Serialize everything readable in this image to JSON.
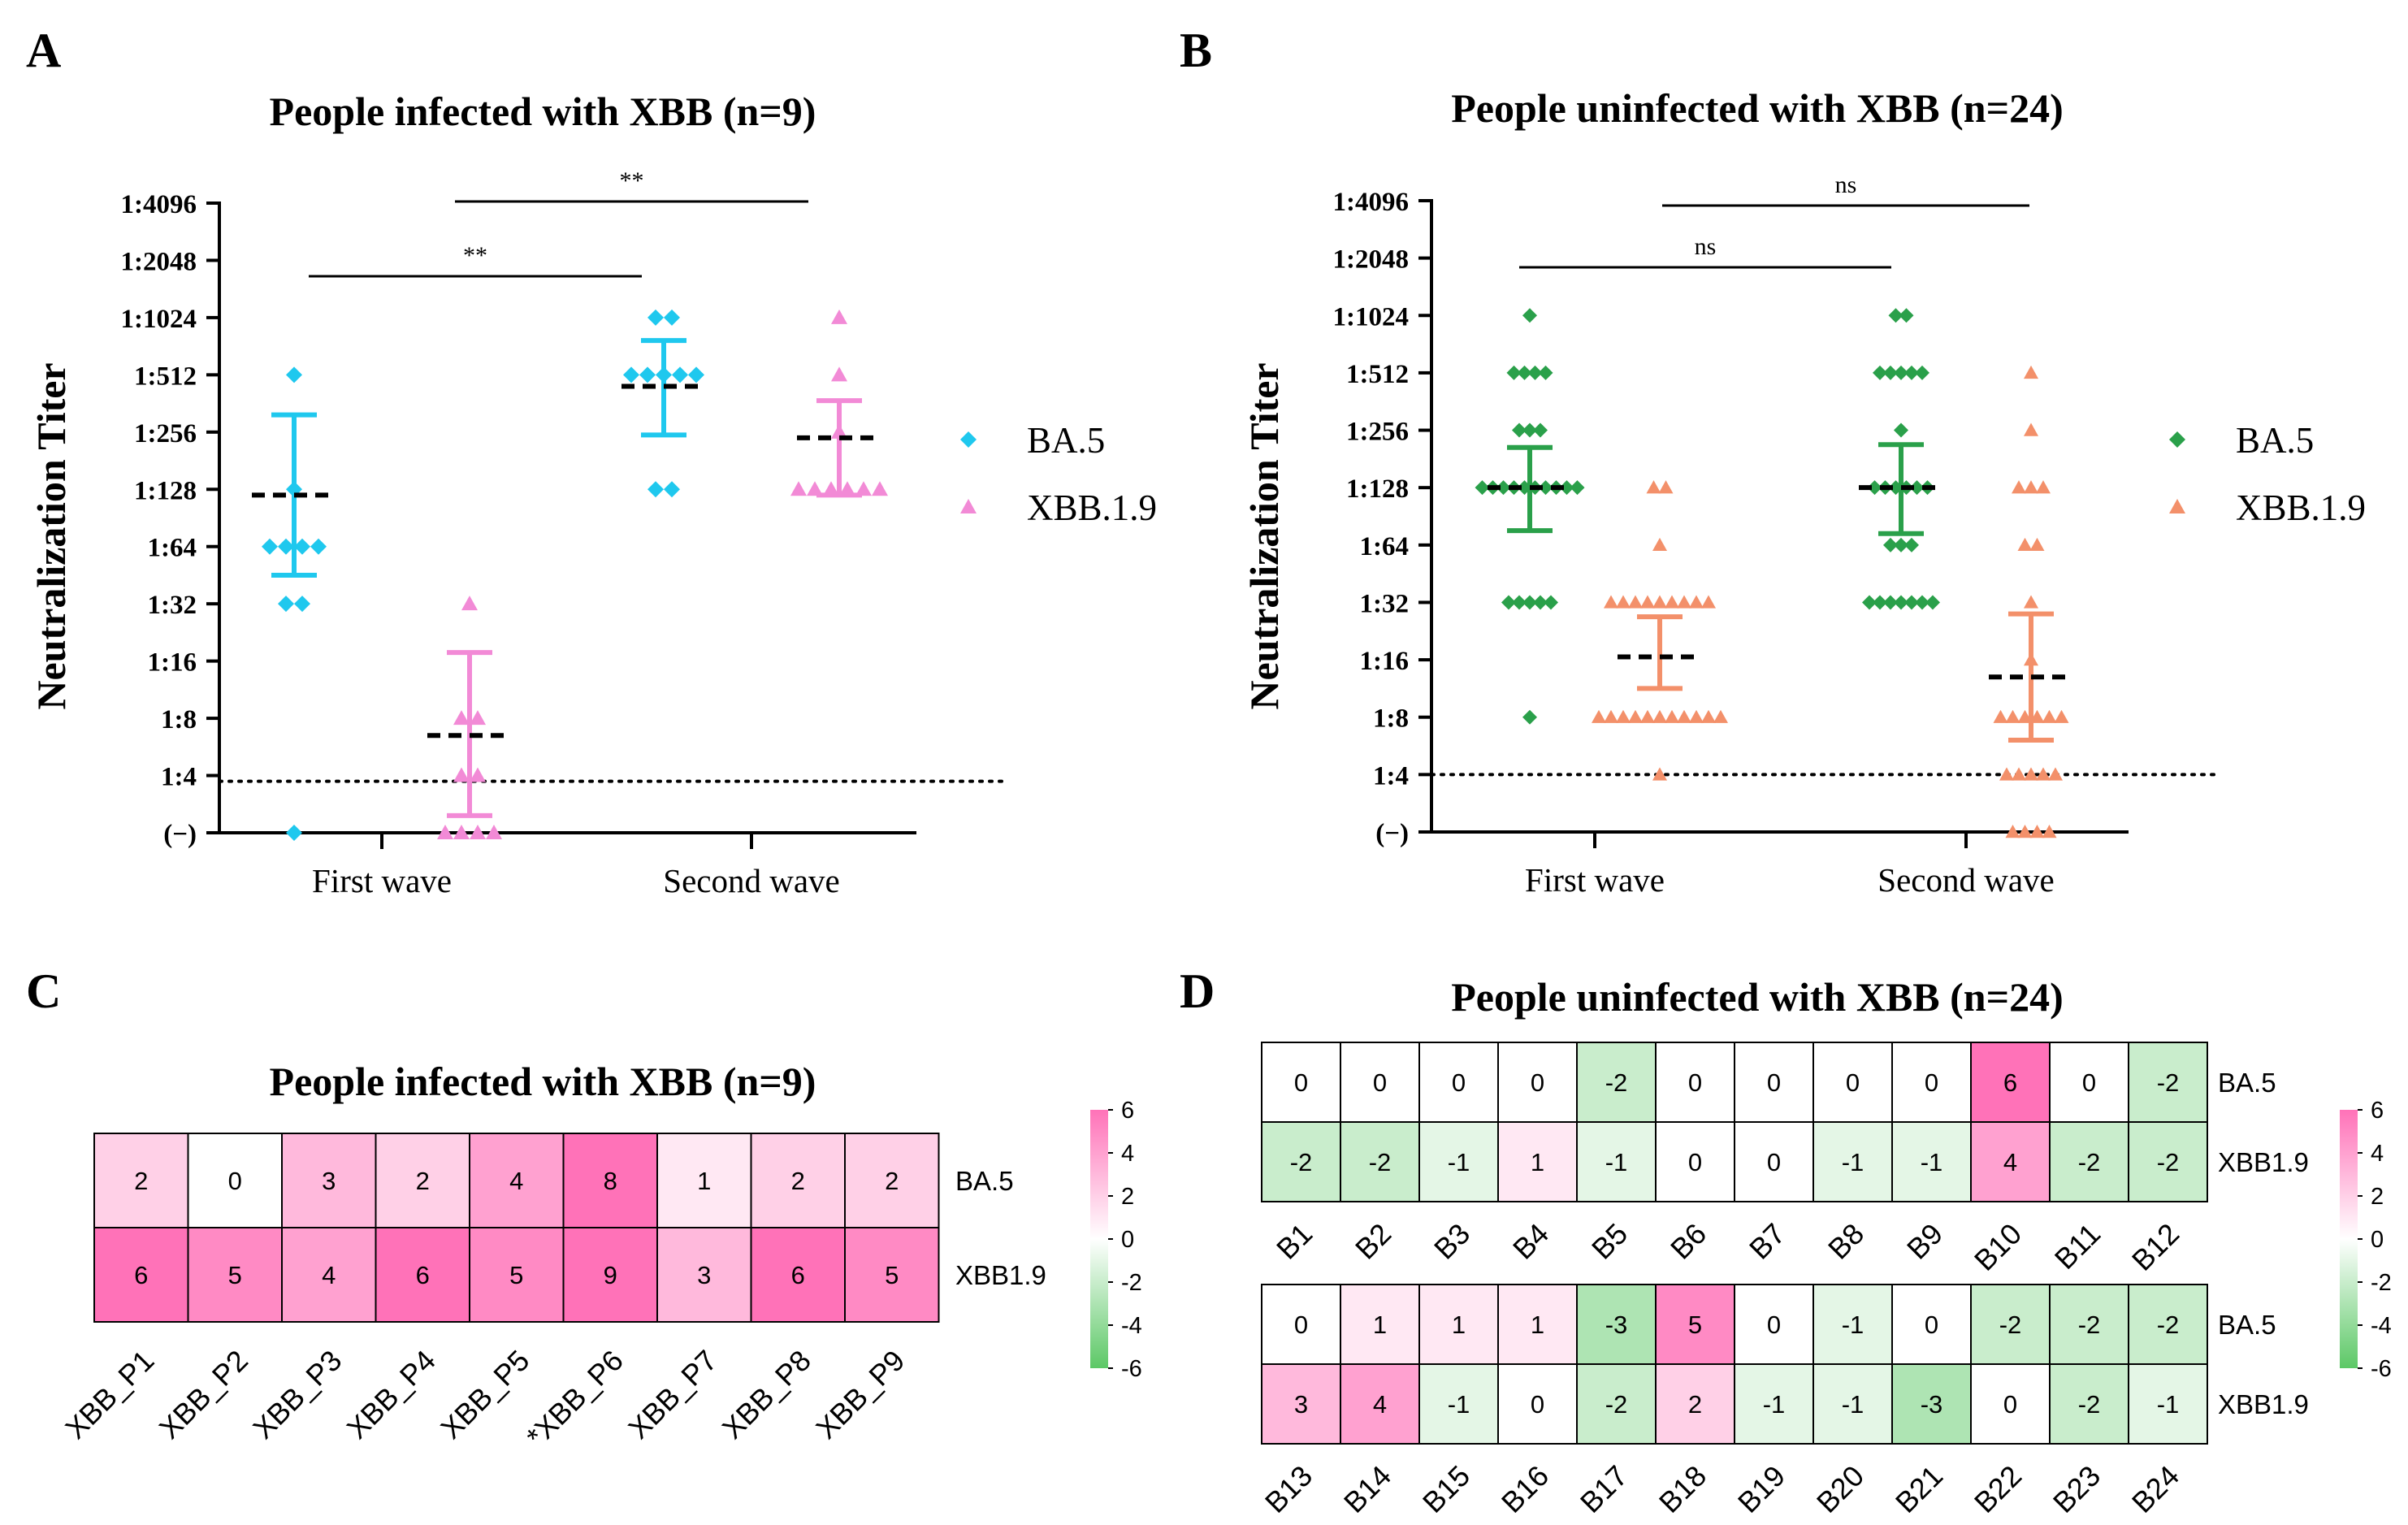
{
  "panels": {
    "A": {
      "letter": "A",
      "title": "People infected with XBB (n=9)",
      "ylabel": "Neutralization Titer",
      "yticks": [
        "(−)",
        "1:4",
        "1:8",
        "1:16",
        "1:32",
        "1:64",
        "1:128",
        "1:256",
        "1:512",
        "1:1024",
        "1:2048",
        "1:4096"
      ],
      "groups": [
        "First wave",
        "Second wave"
      ],
      "legend": [
        "BA.5",
        "XBB.1.9"
      ],
      "brackets": [
        "**",
        "**"
      ]
    },
    "B": {
      "letter": "B",
      "title": "People uninfected with XBB (n=24)",
      "ylabel": "Neutralization Titer",
      "yticks": [
        "(−)",
        "1:4",
        "1:8",
        "1:16",
        "1:32",
        "1:64",
        "1:128",
        "1:256",
        "1:512",
        "1:1024",
        "1:2048",
        "1:4096"
      ],
      "groups": [
        "First wave",
        "Second wave"
      ],
      "legend": [
        "BA.5",
        "XBB.1.9"
      ],
      "brackets": [
        "ns",
        "ns"
      ]
    },
    "C": {
      "letter": "C",
      "title": "People infected with XBB (n=9)",
      "rows": [
        "BA.5",
        "XBB1.9"
      ],
      "cols": [
        "XBB_P1",
        "XBB_P2",
        "XBB_P3",
        "XBB_P4",
        "XBB_P5",
        "*XBB_P6",
        "XBB_P7",
        "XBB_P8",
        "XBB_P9"
      ],
      "values": [
        [
          2,
          0,
          3,
          2,
          4,
          8,
          1,
          2,
          2
        ],
        [
          6,
          5,
          4,
          6,
          5,
          9,
          3,
          6,
          5
        ]
      ]
    },
    "D": {
      "letter": "D",
      "title": "People uninfected with XBB (n=24)",
      "rows": [
        "BA.5",
        "XBB1.9"
      ],
      "cols_top": [
        "B1",
        "B2",
        "B3",
        "B4",
        "B5",
        "B6",
        "B7",
        "B8",
        "B9",
        "B10",
        "B11",
        "B12"
      ],
      "values_top": [
        [
          0,
          0,
          0,
          0,
          -2,
          0,
          0,
          0,
          0,
          6,
          0,
          -2
        ],
        [
          -2,
          -2,
          -1,
          1,
          -1,
          0,
          0,
          -1,
          -1,
          4,
          -2,
          -2
        ]
      ],
      "cols_bottom": [
        "B13",
        "B14",
        "B15",
        "B16",
        "B17",
        "B18",
        "B19",
        "B20",
        "B21",
        "B22",
        "B23",
        "B24"
      ],
      "values_bottom": [
        [
          0,
          1,
          1,
          1,
          -3,
          5,
          0,
          -1,
          0,
          -2,
          -2,
          -2
        ],
        [
          3,
          4,
          -1,
          0,
          -2,
          2,
          -1,
          -1,
          -3,
          0,
          -2,
          -1
        ]
      ]
    }
  },
  "colorbar_ticks": [
    "6",
    "4",
    "2",
    "0",
    "-2",
    "-4",
    "-6"
  ],
  "colors": {
    "A_BA5": "#1fc8ee",
    "A_XBB": "#f28ad6",
    "B_BA5": "#2aa04a",
    "B_XBB": "#f3906a",
    "heat_pos": "#ff72b8",
    "heat_neg": "#5cc866"
  },
  "chart_data": [
    {
      "type": "scatter",
      "title": "People infected with XBB (n=9)",
      "xlabel": "",
      "ylabel": "Neutralization Titer",
      "categories": [
        "First wave",
        "Second wave"
      ],
      "y_scale": "log2 titer; 0 = (−), 1 = 1:4 ... 11 = 1:4096",
      "ylim": [
        0,
        11
      ],
      "series": [
        {
          "name": "BA.5",
          "group": "First wave",
          "values": [
            6,
            5,
            5,
            5,
            5,
            4,
            4,
            8,
            0
          ],
          "mean": 5.9,
          "err": [
            4.5,
            7.3
          ]
        },
        {
          "name": "XBB.1.9",
          "group": "First wave",
          "values": [
            4,
            2,
            2,
            1,
            1,
            0,
            0,
            0,
            0
          ],
          "mean": 1.7,
          "err": [
            0.3,
            3.15
          ]
        },
        {
          "name": "BA.5",
          "group": "Second wave",
          "values": [
            9,
            9,
            8,
            8,
            8,
            8,
            8,
            6,
            6
          ],
          "mean": 7.8,
          "err": [
            6.95,
            8.6
          ]
        },
        {
          "name": "XBB.1.9",
          "group": "Second wave",
          "values": [
            9,
            8,
            7,
            6,
            6,
            6,
            6,
            6,
            6
          ],
          "mean": 6.9,
          "err": [
            5.9,
            7.55
          ]
        }
      ],
      "significance": [
        {
          "pair": "First wave BA.5 vs Second wave BA.5",
          "label": "**"
        },
        {
          "pair": "First wave XBB.1.9 vs Second wave XBB.1.9",
          "label": "**"
        }
      ],
      "reference_line": {
        "y": 0.9,
        "style": "dotted"
      }
    },
    {
      "type": "scatter",
      "title": "People uninfected with XBB (n=24)",
      "xlabel": "",
      "ylabel": "Neutralization Titer",
      "categories": [
        "First wave",
        "Second wave"
      ],
      "y_scale": "log2 titer; 0 = (−), 1 = 1:4 ... 11 = 1:4096",
      "ylim": [
        0,
        11
      ],
      "series": [
        {
          "name": "BA.5",
          "group": "First wave",
          "values": [
            9,
            8,
            8,
            8,
            8,
            7,
            7,
            7,
            6,
            6,
            6,
            6,
            6,
            6,
            6,
            6,
            6,
            6,
            4,
            4,
            4,
            4,
            4,
            2
          ],
          "mean": 6,
          "err": [
            5.25,
            6.7
          ]
        },
        {
          "name": "XBB.1.9",
          "group": "First wave",
          "values": [
            6,
            6,
            5,
            4,
            4,
            4,
            4,
            4,
            4,
            4,
            4,
            4,
            2,
            2,
            2,
            2,
            2,
            2,
            2,
            2,
            2,
            2,
            2,
            1
          ],
          "mean": 3.05,
          "err": [
            2.5,
            3.75
          ]
        },
        {
          "name": "BA.5",
          "group": "Second wave",
          "values": [
            9,
            9,
            8,
            8,
            8,
            8,
            8,
            7,
            6,
            6,
            6,
            6,
            6,
            6,
            5,
            5,
            5,
            4,
            4,
            4,
            4,
            4,
            4,
            4
          ],
          "mean": 6,
          "err": [
            5.2,
            6.75
          ]
        },
        {
          "name": "XBB.1.9",
          "group": "Second wave",
          "values": [
            8,
            7,
            6,
            6,
            6,
            5,
            5,
            4,
            3,
            2,
            2,
            2,
            2,
            2,
            2,
            1,
            1,
            1,
            1,
            1,
            0,
            0,
            0,
            0
          ],
          "mean": 2.7,
          "err": [
            1.6,
            3.8
          ]
        }
      ],
      "significance": [
        {
          "pair": "First wave BA.5 vs Second wave BA.5",
          "label": "ns"
        },
        {
          "pair": "First wave XBB.1.9 vs Second wave XBB.1.9",
          "label": "ns"
        }
      ],
      "reference_line": {
        "y": 1,
        "style": "dotted"
      }
    },
    {
      "type": "heatmap",
      "title": "People infected with XBB (n=9)",
      "rows": [
        "BA.5",
        "XBB1.9"
      ],
      "columns": [
        "XBB_P1",
        "XBB_P2",
        "XBB_P3",
        "XBB_P4",
        "XBB_P5",
        "*XBB_P6",
        "XBB_P7",
        "XBB_P8",
        "XBB_P9"
      ],
      "values": [
        [
          2,
          0,
          3,
          2,
          4,
          8,
          1,
          2,
          2
        ],
        [
          6,
          5,
          4,
          6,
          5,
          9,
          3,
          6,
          5
        ]
      ],
      "color_range": [
        -6,
        6
      ]
    },
    {
      "type": "heatmap",
      "title": "People uninfected with XBB (n=24)",
      "rows": [
        "BA.5",
        "XBB1.9"
      ],
      "columns": [
        "B1",
        "B2",
        "B3",
        "B4",
        "B5",
        "B6",
        "B7",
        "B8",
        "B9",
        "B10",
        "B11",
        "B12",
        "B13",
        "B14",
        "B15",
        "B16",
        "B17",
        "B18",
        "B19",
        "B20",
        "B21",
        "B22",
        "B23",
        "B24"
      ],
      "values": [
        [
          0,
          0,
          0,
          0,
          -2,
          0,
          0,
          0,
          0,
          6,
          0,
          -2,
          0,
          1,
          1,
          1,
          -3,
          5,
          0,
          -1,
          0,
          -2,
          -2,
          -2
        ],
        [
          -2,
          -2,
          -1,
          1,
          -1,
          0,
          0,
          -1,
          -1,
          4,
          -2,
          -2,
          3,
          4,
          -1,
          0,
          -2,
          2,
          -1,
          -1,
          -3,
          0,
          -2,
          -1
        ]
      ],
      "color_range": [
        -6,
        6
      ]
    }
  ]
}
